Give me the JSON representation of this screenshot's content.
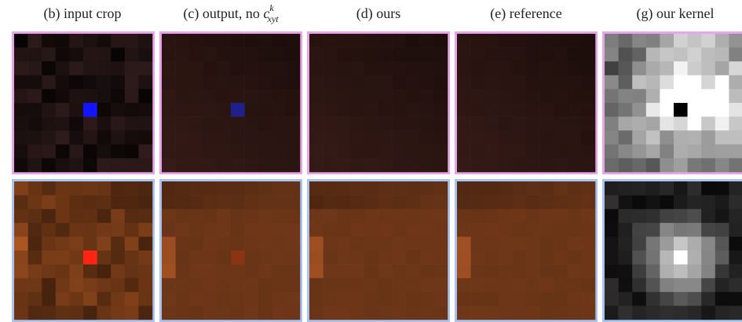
{
  "columns": [
    {
      "label": "(b) input crop"
    },
    {
      "label_prefix": "(c) output, no ",
      "symbol": "c",
      "superscript": "k",
      "subscript": "xyt"
    },
    {
      "label": "(d) ours"
    },
    {
      "label": "(e) reference"
    },
    {
      "label": "(g) our kernel"
    }
  ]
}
